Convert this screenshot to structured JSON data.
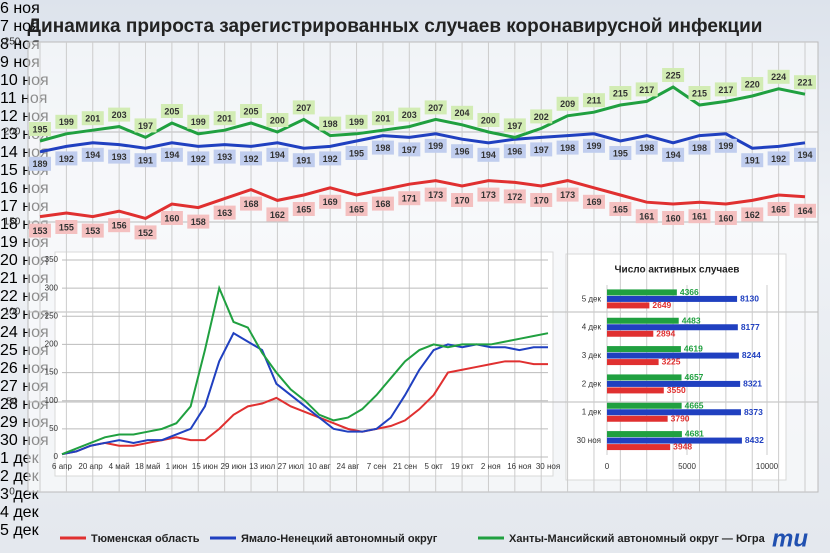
{
  "title": "Динамика прироста зарегистрированных случаев коронавирусной инфекции",
  "logo": "mu",
  "chart_data": [
    {
      "type": "line",
      "data_labels": true,
      "grid": true,
      "categories": [
        "6 ноя",
        "7 ноя",
        "8 ноя",
        "9 ноя",
        "10 ноя",
        "11 ноя",
        "12 ноя",
        "13 ноя",
        "14 ноя",
        "15 ноя",
        "16 ноя",
        "17 ноя",
        "18 ноя",
        "19 ноя",
        "20 ноя",
        "21 ноя",
        "22 ноя",
        "23 ноя",
        "24 ноя",
        "25 ноя",
        "26 ноя",
        "27 ноя",
        "28 ноя",
        "29 ноя",
        "30 ноя",
        "1 дек",
        "2 дек",
        "3 дек",
        "4 дек",
        "5 дек"
      ],
      "ylim": [
        0,
        250
      ],
      "yticks": [
        0,
        50,
        100,
        150,
        200,
        250
      ],
      "series": [
        {
          "name": "Тюменская область",
          "color": "#e03030",
          "values": [
            153,
            155,
            153,
            156,
            152,
            160,
            158,
            163,
            168,
            162,
            165,
            169,
            165,
            168,
            171,
            173,
            170,
            173,
            172,
            170,
            173,
            169,
            165,
            161,
            160,
            161,
            160,
            162,
            165,
            164
          ]
        },
        {
          "name": "Ямало-Ненецкий автономный округ",
          "color": "#2040c0",
          "values": [
            189,
            192,
            194,
            193,
            191,
            194,
            192,
            193,
            192,
            194,
            191,
            192,
            195,
            198,
            197,
            199,
            196,
            194,
            196,
            197,
            198,
            199,
            195,
            198,
            194,
            198,
            199,
            191,
            192,
            194
          ]
        },
        {
          "name": "Ханты-Мансийский автономный округ — Югра",
          "color": "#20a040",
          "values": [
            195,
            199,
            201,
            203,
            197,
            205,
            199,
            201,
            205,
            200,
            207,
            198,
            199,
            201,
            203,
            207,
            204,
            200,
            197,
            202,
            209,
            211,
            215,
            217,
            225,
            215,
            217,
            220,
            224,
            221
          ]
        }
      ]
    },
    {
      "type": "line",
      "grid": true,
      "categories": [
        "6 апр",
        null,
        "20 апр",
        null,
        "4 май",
        null,
        "18 май",
        null,
        "1 июн",
        null,
        "15 июн",
        null,
        "29 июн",
        null,
        "13 июл",
        null,
        "27 июл",
        null,
        "10 авг",
        null,
        "24 авг",
        null,
        "7 сен",
        null,
        "21 сен",
        null,
        "5 окт",
        null,
        "19 окт",
        null,
        "2 ноя",
        null,
        "16 ноя",
        null,
        "30 ноя"
      ],
      "ylim": [
        0,
        350
      ],
      "yticks": [
        0,
        50,
        100,
        150,
        200,
        250,
        300,
        350
      ],
      "series": [
        {
          "color": "#e03030",
          "values": [
            5,
            10,
            20,
            25,
            20,
            20,
            25,
            30,
            35,
            30,
            30,
            50,
            75,
            90,
            95,
            105,
            90,
            80,
            70,
            60,
            50,
            45,
            50,
            55,
            65,
            85,
            110,
            150,
            155,
            160,
            165,
            170,
            170,
            165,
            165
          ]
        },
        {
          "color": "#2040c0",
          "values": [
            5,
            10,
            20,
            25,
            30,
            25,
            30,
            30,
            40,
            50,
            90,
            170,
            220,
            205,
            190,
            130,
            110,
            90,
            70,
            50,
            45,
            45,
            50,
            70,
            110,
            155,
            190,
            200,
            195,
            200,
            195,
            195,
            190,
            195,
            195
          ]
        },
        {
          "color": "#20a040",
          "values": [
            5,
            15,
            25,
            35,
            40,
            40,
            45,
            50,
            60,
            90,
            190,
            300,
            240,
            230,
            185,
            150,
            120,
            100,
            75,
            65,
            70,
            85,
            110,
            140,
            170,
            190,
            200,
            195,
            200,
            200,
            200,
            205,
            210,
            215,
            220
          ]
        }
      ]
    },
    {
      "type": "bar",
      "orientation": "horizontal",
      "title": "Число активных случаев",
      "grid": true,
      "categories": [
        "5 дек",
        "4 дек",
        "3 дек",
        "2 дек",
        "1 дек",
        "30 ноя"
      ],
      "xlim": [
        0,
        10000
      ],
      "xticks": [
        0,
        5000,
        10000
      ],
      "series": [
        {
          "color": "#20a040",
          "values": [
            4366,
            4483,
            4619,
            4657,
            4665,
            4681
          ]
        },
        {
          "color": "#2040c0",
          "values": [
            8130,
            8177,
            8244,
            8321,
            8373,
            8432
          ]
        },
        {
          "color": "#e03030",
          "values": [
            2649,
            2894,
            3225,
            3550,
            3790,
            3948
          ]
        }
      ]
    }
  ]
}
